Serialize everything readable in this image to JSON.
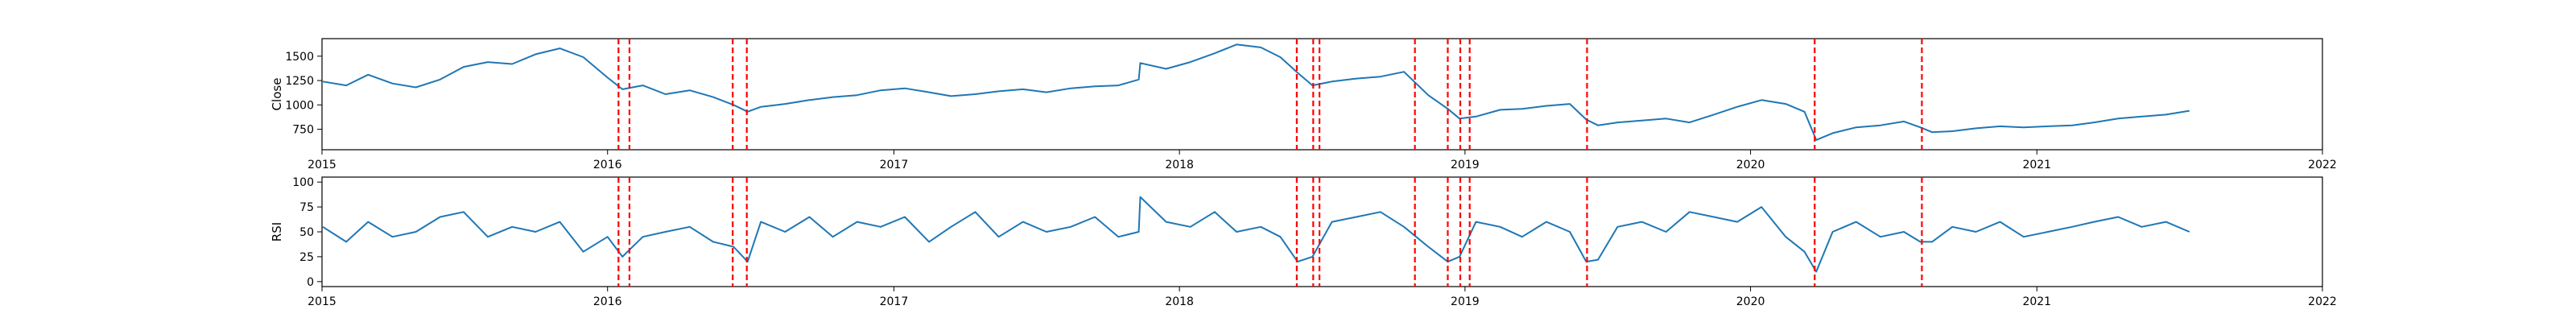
{
  "chart_data": [
    {
      "type": "line",
      "title": "",
      "xlabel": "",
      "ylabel": "Close",
      "x_ticks": [
        "2015",
        "2016",
        "2017",
        "2018",
        "2019",
        "2020",
        "2021",
        "2022"
      ],
      "y_ticks": [
        750,
        1000,
        1250,
        1500
      ],
      "xlim": [
        "2015-01-01",
        "2022-01-01"
      ],
      "ylim": [
        540,
        1680
      ],
      "grid": false,
      "series": [
        {
          "color": "#1f77b4",
          "x": [
            "2015-01-02",
            "2015-02-01",
            "2015-03-01",
            "2015-04-01",
            "2015-05-01",
            "2015-06-01",
            "2015-07-01",
            "2015-08-01",
            "2015-09-01",
            "2015-10-01",
            "2015-11-01",
            "2015-12-01",
            "2016-01-01",
            "2016-01-20",
            "2016-02-15",
            "2016-03-15",
            "2016-04-15",
            "2016-05-15",
            "2016-06-10",
            "2016-06-28",
            "2016-07-15",
            "2016-08-15",
            "2016-09-15",
            "2016-10-15",
            "2016-11-15",
            "2016-12-15",
            "2017-01-15",
            "2017-02-15",
            "2017-03-15",
            "2017-04-15",
            "2017-05-15",
            "2017-06-15",
            "2017-07-15",
            "2017-08-15",
            "2017-09-15",
            "2017-10-15",
            "2017-11-10",
            "2017-11-12",
            "2017-12-15",
            "2018-01-15",
            "2018-02-15",
            "2018-03-15",
            "2018-04-15",
            "2018-05-10",
            "2018-06-01",
            "2018-06-20",
            "2018-07-15",
            "2018-08-15",
            "2018-09-15",
            "2018-10-15",
            "2018-11-15",
            "2018-12-10",
            "2018-12-25",
            "2019-01-15",
            "2019-02-15",
            "2019-03-15",
            "2019-04-15",
            "2019-05-15",
            "2019-06-05",
            "2019-06-20",
            "2019-07-15",
            "2019-08-15",
            "2019-09-15",
            "2019-10-15",
            "2019-11-15",
            "2019-12-15",
            "2020-01-15",
            "2020-02-15",
            "2020-03-10",
            "2020-03-25",
            "2020-04-15",
            "2020-05-15",
            "2020-06-15",
            "2020-07-15",
            "2020-08-05",
            "2020-08-20",
            "2020-09-15",
            "2020-10-15",
            "2020-11-15",
            "2020-12-15",
            "2021-01-15",
            "2021-02-15",
            "2021-03-15",
            "2021-04-15",
            "2021-05-15",
            "2021-06-15",
            "2021-07-15"
          ],
          "y": [
            1240,
            1200,
            1310,
            1220,
            1180,
            1260,
            1390,
            1440,
            1420,
            1520,
            1580,
            1490,
            1280,
            1160,
            1200,
            1110,
            1150,
            1080,
            1000,
            930,
            980,
            1010,
            1050,
            1080,
            1100,
            1150,
            1170,
            1130,
            1090,
            1110,
            1140,
            1160,
            1130,
            1170,
            1190,
            1200,
            1260,
            1430,
            1370,
            1440,
            1530,
            1620,
            1590,
            1490,
            1330,
            1200,
            1240,
            1270,
            1290,
            1340,
            1100,
            960,
            860,
            880,
            950,
            960,
            990,
            1010,
            850,
            790,
            820,
            840,
            860,
            820,
            900,
            980,
            1050,
            1010,
            930,
            640,
            710,
            770,
            790,
            830,
            770,
            720,
            730,
            760,
            780,
            770,
            780,
            790,
            820,
            860,
            880,
            900,
            940
          ]
        }
      ],
      "vlines": [
        "2016-01-15",
        "2016-01-29",
        "2016-06-09",
        "2016-06-27",
        "2018-05-31",
        "2018-06-21",
        "2018-06-29",
        "2018-10-29",
        "2018-12-10",
        "2018-12-26",
        "2019-01-07",
        "2019-06-06",
        "2020-03-23",
        "2020-08-07"
      ],
      "vline_color": "#ff0000"
    },
    {
      "type": "line",
      "title": "",
      "xlabel": "",
      "ylabel": "RSI",
      "x_ticks": [
        "2015",
        "2016",
        "2017",
        "2018",
        "2019",
        "2020",
        "2021",
        "2022"
      ],
      "y_ticks": [
        0,
        25,
        50,
        75,
        100
      ],
      "xlim": [
        "2015-01-01",
        "2022-01-01"
      ],
      "ylim": [
        -5,
        105
      ],
      "grid": false,
      "series": [
        {
          "color": "#1f77b4",
          "x": [
            "2015-01-02",
            "2015-02-01",
            "2015-03-01",
            "2015-04-01",
            "2015-05-01",
            "2015-06-01",
            "2015-07-01",
            "2015-08-01",
            "2015-09-01",
            "2015-10-01",
            "2015-11-01",
            "2015-12-01",
            "2016-01-01",
            "2016-01-20",
            "2016-02-15",
            "2016-03-15",
            "2016-04-15",
            "2016-05-15",
            "2016-06-10",
            "2016-06-28",
            "2016-07-15",
            "2016-08-15",
            "2016-09-15",
            "2016-10-15",
            "2016-11-15",
            "2016-12-15",
            "2017-01-15",
            "2017-02-15",
            "2017-03-15",
            "2017-04-15",
            "2017-05-15",
            "2017-06-15",
            "2017-07-15",
            "2017-08-15",
            "2017-09-15",
            "2017-10-15",
            "2017-11-10",
            "2017-11-12",
            "2017-12-15",
            "2018-01-15",
            "2018-02-15",
            "2018-03-15",
            "2018-04-15",
            "2018-05-10",
            "2018-06-01",
            "2018-06-20",
            "2018-07-15",
            "2018-08-15",
            "2018-09-15",
            "2018-10-15",
            "2018-11-15",
            "2018-12-10",
            "2018-12-25",
            "2019-01-15",
            "2019-02-15",
            "2019-03-15",
            "2019-04-15",
            "2019-05-15",
            "2019-06-05",
            "2019-06-20",
            "2019-07-15",
            "2019-08-15",
            "2019-09-15",
            "2019-10-15",
            "2019-11-15",
            "2019-12-15",
            "2020-01-15",
            "2020-02-15",
            "2020-03-10",
            "2020-03-25",
            "2020-04-15",
            "2020-05-15",
            "2020-06-15",
            "2020-07-15",
            "2020-08-05",
            "2020-08-20",
            "2020-09-15",
            "2020-10-15",
            "2020-11-15",
            "2020-12-15",
            "2021-01-15",
            "2021-02-15",
            "2021-03-15",
            "2021-04-15",
            "2021-05-15",
            "2021-06-15",
            "2021-07-15"
          ],
          "y": [
            55,
            40,
            60,
            45,
            50,
            65,
            70,
            45,
            55,
            50,
            60,
            30,
            45,
            25,
            45,
            50,
            55,
            40,
            35,
            20,
            60,
            50,
            65,
            45,
            60,
            55,
            65,
            40,
            55,
            70,
            45,
            60,
            50,
            55,
            65,
            45,
            50,
            85,
            60,
            55,
            70,
            50,
            55,
            45,
            20,
            25,
            60,
            65,
            70,
            55,
            35,
            20,
            25,
            60,
            55,
            45,
            60,
            50,
            20,
            22,
            55,
            60,
            50,
            70,
            65,
            60,
            75,
            45,
            30,
            10,
            50,
            60,
            45,
            50,
            40,
            40,
            55,
            50,
            60,
            45,
            50,
            55,
            60,
            65,
            55,
            60,
            50
          ]
        }
      ],
      "vlines": [
        "2016-01-15",
        "2016-01-29",
        "2016-06-09",
        "2016-06-27",
        "2018-05-31",
        "2018-06-21",
        "2018-06-29",
        "2018-10-29",
        "2018-12-10",
        "2018-12-26",
        "2019-01-07",
        "2019-06-06",
        "2020-03-23",
        "2020-08-07"
      ],
      "vline_color": "#ff0000"
    }
  ]
}
